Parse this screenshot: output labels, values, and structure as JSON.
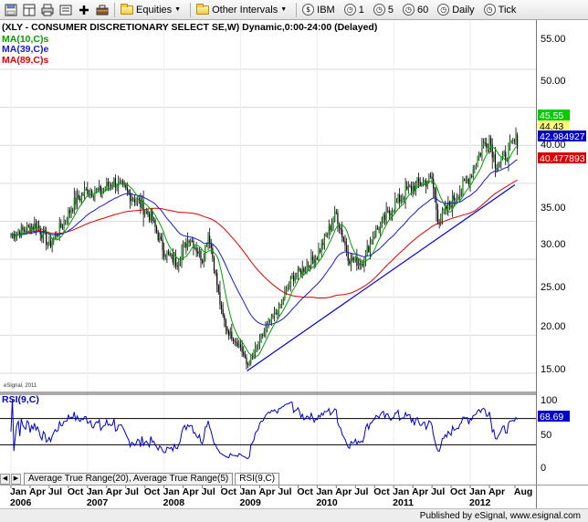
{
  "toolbar": {
    "equities_label": "Equities",
    "other_intervals_label": "Other Intervals",
    "symbol_label": "IBM",
    "interval_buttons": [
      {
        "glyph": "$",
        "label": "IBM"
      },
      {
        "glyph": "1",
        "label": "1"
      },
      {
        "glyph": "5",
        "label": "5"
      },
      {
        "glyph": "60",
        "label": "60"
      },
      {
        "glyph": "D",
        "label": "Daily"
      },
      {
        "glyph": "T",
        "label": "Tick"
      }
    ]
  },
  "chart": {
    "title": "(XLY - CONSUMER DISCRETIONARY SELECT SE,W) Dynamic,0:00-24:00 (Delayed)",
    "legend": [
      {
        "name": "MA(10,C)s",
        "color": "#00a000"
      },
      {
        "name": "MA(39,C)e",
        "color": "#1a1acc"
      },
      {
        "name": "MA(89,C)s",
        "color": "#dd0000"
      }
    ],
    "watermark": "eSignal, 2011",
    "price_ticks": [
      "55.00",
      "50.00",
      "45.00",
      "40.00",
      "35.00",
      "30.00",
      "25.00",
      "20.00",
      "15.00"
    ],
    "price_flags": [
      {
        "text": "45.55",
        "bg": "#00cc00",
        "fg": "#ffffff"
      },
      {
        "text": "44.43",
        "bg": "#ffff80",
        "fg": "#000000"
      },
      {
        "text": "42.984927",
        "bg": "#0000cc",
        "fg": "#ffffff"
      },
      {
        "text": "40.477893",
        "bg": "#dd0000",
        "fg": "#ffffff"
      }
    ],
    "rsi_label": "RSI(9,C)",
    "rsi_ticks": [
      "100",
      "50",
      "0"
    ],
    "rsi_flag": {
      "text": "68.69",
      "bg": "#0000cc",
      "fg": "#ffffff"
    },
    "colors": {
      "up_bar": "#008800",
      "down_bar": "#000000",
      "trendline": "#0000dd",
      "rsi_line": "#0000cc",
      "rsi_band": "#000000"
    },
    "x_months": [
      "Jan",
      "Apr",
      "Jul",
      "Oct",
      "Jan",
      "Apr",
      "Jul",
      "Oct",
      "Jan",
      "Apr",
      "Jul",
      "Oct",
      "Jan",
      "Apr",
      "Jul",
      "Oct",
      "Jan",
      "Apr",
      "Jul",
      "Oct",
      "Jan",
      "Apr",
      "Jul",
      "Oct",
      "Jan",
      "Apr",
      "Aug"
    ],
    "x_years": [
      "2006",
      "2007",
      "2008",
      "2009",
      "2010",
      "2011",
      "2012"
    ]
  },
  "chart_data": {
    "type": "candlestick",
    "symbol": "XLY",
    "x_range": [
      "2006-01",
      "2012-08"
    ],
    "ylim": [
      13,
      58
    ],
    "price_path": [
      [
        "2006-01",
        33.2
      ],
      [
        "2006-03",
        33.8
      ],
      [
        "2006-05",
        34.6
      ],
      [
        "2006-07",
        31.8
      ],
      [
        "2006-09",
        34.5
      ],
      [
        "2006-11",
        37.5
      ],
      [
        "2007-01",
        39.2
      ],
      [
        "2007-03",
        38.8
      ],
      [
        "2007-05",
        40.3
      ],
      [
        "2007-07",
        39.0
      ],
      [
        "2007-09",
        37.5
      ],
      [
        "2007-11",
        35.5
      ],
      [
        "2008-01",
        31.0
      ],
      [
        "2008-03",
        29.5
      ],
      [
        "2008-05",
        33.0
      ],
      [
        "2008-07",
        30.0
      ],
      [
        "2008-08",
        33.5
      ],
      [
        "2008-10",
        23.0
      ],
      [
        "2008-11",
        20.5
      ],
      [
        "2009-01",
        18.5
      ],
      [
        "2009-02",
        16.0
      ],
      [
        "2009-03",
        17.5
      ],
      [
        "2009-05",
        21.0
      ],
      [
        "2009-07",
        23.5
      ],
      [
        "2009-09",
        27.5
      ],
      [
        "2009-11",
        28.8
      ],
      [
        "2010-01",
        30.5
      ],
      [
        "2010-04",
        36.0
      ],
      [
        "2010-06",
        30.0
      ],
      [
        "2010-08",
        29.5
      ],
      [
        "2010-10",
        33.5
      ],
      [
        "2011-01",
        37.0
      ],
      [
        "2011-03",
        39.0
      ],
      [
        "2011-05",
        40.0
      ],
      [
        "2011-07",
        40.5
      ],
      [
        "2011-08",
        35.0
      ],
      [
        "2011-10",
        37.5
      ],
      [
        "2012-01",
        41.0
      ],
      [
        "2012-03",
        45.0
      ],
      [
        "2012-04",
        46.0
      ],
      [
        "2012-05",
        42.5
      ],
      [
        "2012-06",
        43.0
      ],
      [
        "2012-08",
        45.55
      ]
    ],
    "ma10_last": 44.43,
    "ma39_last": 42.984927,
    "ma89_last": 40.477893,
    "last_close": 45.55,
    "rsi_last": 68.69,
    "trendline": [
      [
        "2009-02",
        15.3
      ],
      [
        "2012-08",
        39.8
      ]
    ]
  }
}
